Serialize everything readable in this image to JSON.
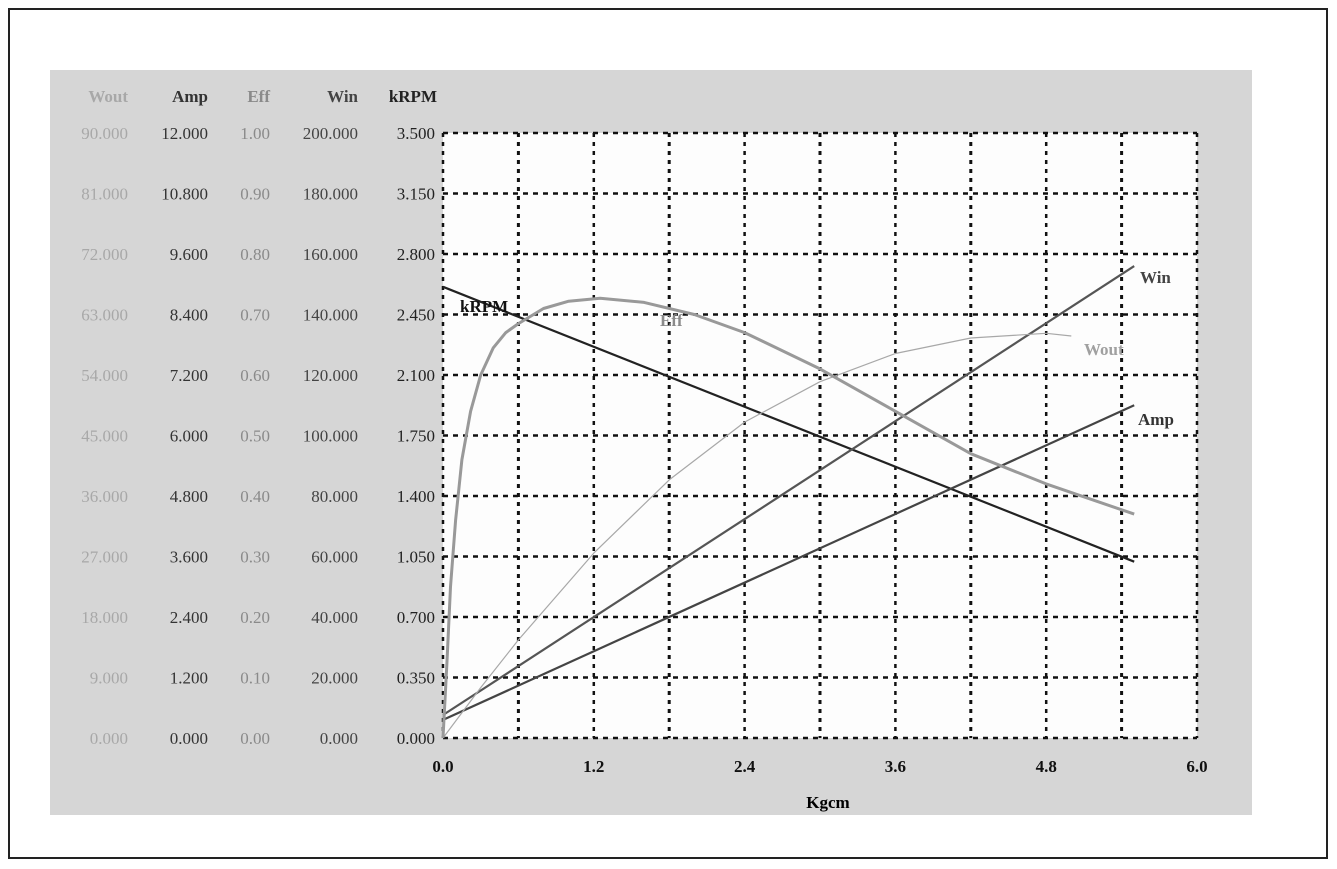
{
  "chart_data": {
    "type": "line",
    "xlabel": "Kgcm",
    "xlim": [
      0,
      6.0
    ],
    "x_ticks": [
      "0.0",
      "1.2",
      "2.4",
      "3.6",
      "4.8",
      "6.0"
    ],
    "x_grid_step": 0.6,
    "grid": true,
    "grid_style": "dotted",
    "axes": [
      {
        "name": "Wout",
        "ylim": [
          0,
          90
        ],
        "color": "#a8a8a8",
        "ticks": [
          "0.000",
          "9.000",
          "18.000",
          "27.000",
          "36.000",
          "45.000",
          "54.000",
          "63.000",
          "72.000",
          "81.000",
          "90.000"
        ]
      },
      {
        "name": "Amp",
        "ylim": [
          0,
          12
        ],
        "color": "#333333",
        "ticks": [
          "0.000",
          "1.200",
          "2.400",
          "3.600",
          "4.800",
          "6.000",
          "7.200",
          "8.400",
          "9.600",
          "10.800",
          "12.000"
        ]
      },
      {
        "name": "Eff",
        "ylim": [
          0,
          1
        ],
        "color": "#8a8a8a",
        "ticks": [
          "0.00",
          "0.10",
          "0.20",
          "0.30",
          "0.40",
          "0.50",
          "0.60",
          "0.70",
          "0.80",
          "0.90",
          "1.00"
        ]
      },
      {
        "name": "Win",
        "ylim": [
          0,
          200
        ],
        "color": "#444444",
        "ticks": [
          "0.000",
          "20.000",
          "40.000",
          "60.000",
          "80.000",
          "100.000",
          "120.000",
          "140.000",
          "160.000",
          "180.000",
          "200.000"
        ]
      },
      {
        "name": "kRPM",
        "ylim": [
          0,
          3.5
        ],
        "color": "#222222",
        "ticks": [
          "0.000",
          "0.350",
          "0.700",
          "1.050",
          "1.400",
          "1.750",
          "2.100",
          "2.450",
          "2.800",
          "3.150",
          "3.500"
        ]
      }
    ],
    "series": [
      {
        "name": "kRPM",
        "axis": 4,
        "color": "#222222",
        "width": 2.2,
        "x": [
          0,
          5.5
        ],
        "y": [
          2.61,
          1.02
        ]
      },
      {
        "name": "Amp",
        "axis": 1,
        "color": "#444444",
        "width": 2.2,
        "x": [
          0,
          5.5
        ],
        "y": [
          0.36,
          6.6
        ]
      },
      {
        "name": "Win",
        "axis": 3,
        "color": "#555555",
        "width": 2.2,
        "x": [
          0,
          5.5
        ],
        "y": [
          7.6,
          156
        ]
      },
      {
        "name": "Wout",
        "axis": 0,
        "color": "#a8a8a8",
        "width": 1.2,
        "x": [
          0,
          0.3,
          0.6,
          1.2,
          1.8,
          2.4,
          3.0,
          3.6,
          4.2,
          4.8,
          5.0
        ],
        "y": [
          0,
          7.5,
          14.6,
          27.5,
          38.4,
          47.0,
          53.0,
          57.2,
          59.5,
          60.2,
          59.8
        ]
      },
      {
        "name": "Eff",
        "axis": 2,
        "color": "#999999",
        "width": 3,
        "x": [
          0,
          0.03,
          0.06,
          0.1,
          0.15,
          0.22,
          0.3,
          0.4,
          0.5,
          0.6,
          0.8,
          1.0,
          1.25,
          1.6,
          2.0,
          2.4,
          3.0,
          3.6,
          4.2,
          4.8,
          5.5
        ],
        "y": [
          0,
          0.12,
          0.25,
          0.36,
          0.46,
          0.54,
          0.6,
          0.645,
          0.67,
          0.685,
          0.71,
          0.722,
          0.727,
          0.72,
          0.7,
          0.67,
          0.61,
          0.54,
          0.47,
          0.42,
          0.37
        ]
      }
    ]
  }
}
